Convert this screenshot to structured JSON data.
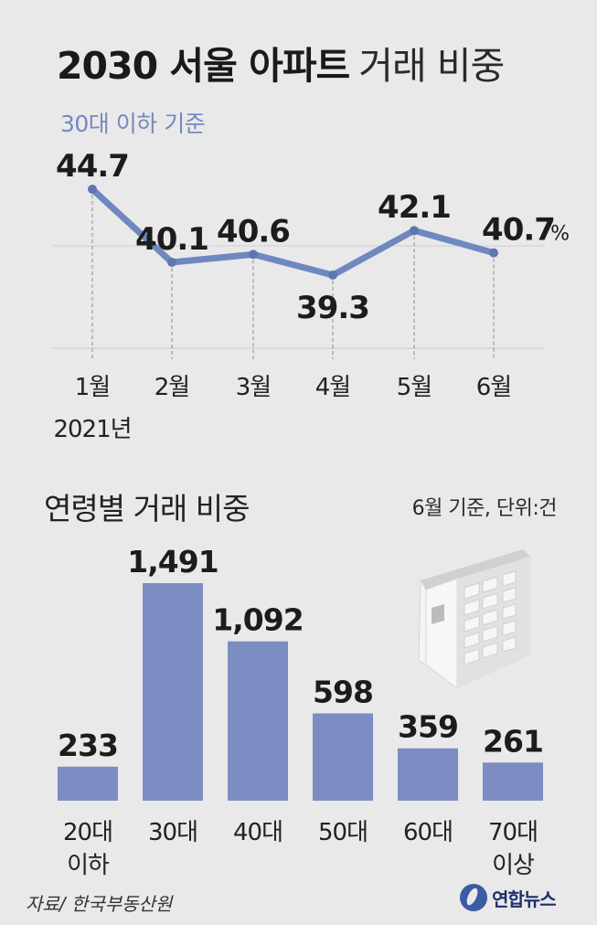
{
  "title": {
    "main": "2030 서울 아파트",
    "sub": "거래 비중"
  },
  "subtitle": "30대 이하 기준",
  "line_unit": "%",
  "line_year": "2021년",
  "section2": {
    "title": "연령별 거래 비중",
    "note": "6월 기준, 단위:건"
  },
  "source": "자료/ 한국부동산원",
  "logo": {
    "text": "연합뉴스",
    "icon": "yonhap-logo-icon"
  },
  "illustration": "apartment-building-icon",
  "colors": {
    "line": "#6f88bf",
    "bar": "#7b8dc2",
    "subtitle": "#7688bf",
    "background": "#e9e9ea"
  },
  "chart_data": [
    {
      "type": "line",
      "title": "2030 서울 아파트 거래 비중",
      "subtitle": "30대 이하 기준",
      "x": [
        "1월",
        "2월",
        "3월",
        "4월",
        "5월",
        "6월"
      ],
      "x_value_labels": [
        "44.7",
        "40.1",
        "40.6",
        "39.3",
        "42.1",
        "40.7"
      ],
      "series": [
        {
          "values": [
            44.7,
            40.1,
            40.6,
            39.3,
            42.1,
            40.7
          ]
        }
      ],
      "unit": "%",
      "grid": true
    },
    {
      "type": "bar",
      "title": "연령별 거래 비중",
      "note": "6월 기준, 단위:건",
      "categories": [
        "20대 이하",
        "30대",
        "40대",
        "50대",
        "60대",
        "70대 이상"
      ],
      "category_lines": [
        [
          "20대",
          "이하"
        ],
        [
          "30대"
        ],
        [
          "40대"
        ],
        [
          "50대"
        ],
        [
          "60대"
        ],
        [
          "70대",
          "이상"
        ]
      ],
      "value_labels": [
        "233",
        "1,491",
        "1,092",
        "598",
        "359",
        "261"
      ],
      "values": [
        233,
        1491,
        1092,
        598,
        359,
        261
      ]
    }
  ]
}
